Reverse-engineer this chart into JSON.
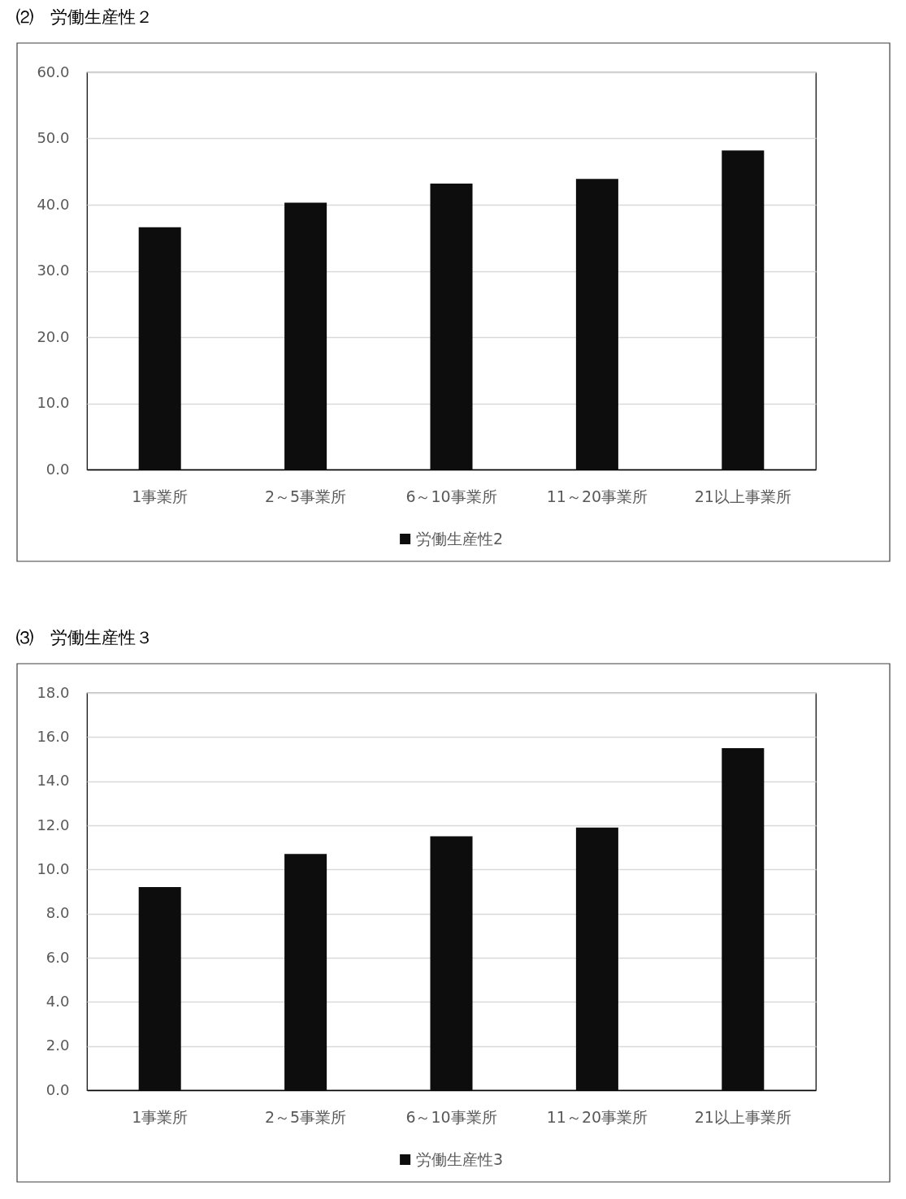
{
  "chart_data": [
    {
      "type": "bar",
      "title": "⑵　労働生産性２",
      "categories": [
        "1事業所",
        "2～5事業所",
        "6～10事業所",
        "11～20事業所",
        "21以上事業所"
      ],
      "series": [
        {
          "name": "労働生産性2",
          "color": "#0d0d0d",
          "values": [
            36.6,
            40.3,
            43.2,
            43.9,
            48.2
          ]
        }
      ],
      "ylim": [
        0,
        60
      ],
      "yticks": [
        {
          "value": 0,
          "label": "0.0"
        },
        {
          "value": 10,
          "label": "10.0"
        },
        {
          "value": 20,
          "label": "20.0"
        },
        {
          "value": 30,
          "label": "30.0"
        },
        {
          "value": 40,
          "label": "40.0"
        },
        {
          "value": 50,
          "label": "50.0"
        },
        {
          "value": 60,
          "label": "60.0"
        }
      ],
      "grid": "y",
      "legend": "bottom"
    },
    {
      "type": "bar",
      "title": "⑶　労働生産性３",
      "categories": [
        "1事業所",
        "2～5事業所",
        "6～10事業所",
        "11～20事業所",
        "21以上事業所"
      ],
      "series": [
        {
          "name": "労働生産性3",
          "color": "#0d0d0d",
          "values": [
            9.2,
            10.7,
            11.5,
            11.9,
            15.5
          ]
        }
      ],
      "ylim": [
        0,
        18
      ],
      "yticks": [
        {
          "value": 0,
          "label": "0.0"
        },
        {
          "value": 2,
          "label": "2.0"
        },
        {
          "value": 4,
          "label": "4.0"
        },
        {
          "value": 6,
          "label": "6.0"
        },
        {
          "value": 8,
          "label": "8.0"
        },
        {
          "value": 10,
          "label": "10.0"
        },
        {
          "value": 12,
          "label": "12.0"
        },
        {
          "value": 14,
          "label": "14.0"
        },
        {
          "value": 16,
          "label": "16.0"
        },
        {
          "value": 18,
          "label": "18.0"
        }
      ],
      "grid": "y",
      "legend": "bottom"
    }
  ]
}
